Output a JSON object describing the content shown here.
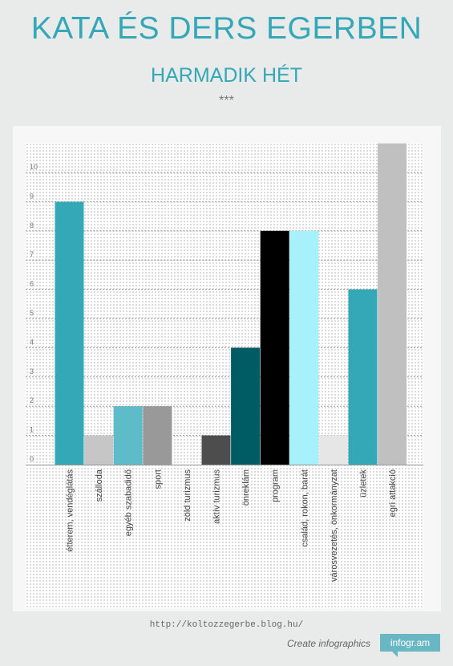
{
  "header": {
    "title": "KATA ÉS DERS EGERBEN",
    "subtitle": "HARMADIK HÉT",
    "stars": "***"
  },
  "footer": {
    "url": "http://koltozzegerbe.blog.hu/",
    "create_text": "Create infographics",
    "badge_text": "infogr.am"
  },
  "chart_data": {
    "type": "bar",
    "title": "",
    "xlabel": "",
    "ylabel": "",
    "ylim": [
      0,
      11
    ],
    "y_ticks": [
      0,
      1,
      2,
      3,
      4,
      5,
      6,
      7,
      8,
      9,
      10
    ],
    "grid": true,
    "categories": [
      "étterem, vendéglátás",
      "szálloda",
      "egyéb szabadidő",
      "sport",
      "zöld turizmus",
      "aktív turizmus",
      "önreklám",
      "program",
      "család, rokon, barát",
      "városvezetés, önkormányzat",
      "üzletek",
      "egri attakció"
    ],
    "values": [
      9,
      1,
      2,
      2,
      0,
      1,
      4,
      8,
      8,
      1,
      6,
      11
    ],
    "colors": [
      "#35a8b8",
      "#c6c6c6",
      "#5dbcc7",
      "#999999",
      "#cccccc",
      "#4d4d4d",
      "#005c64",
      "#000000",
      "#a6f1fa",
      "#e6e6e6",
      "#35a8b8",
      "#c0c0c0"
    ]
  }
}
